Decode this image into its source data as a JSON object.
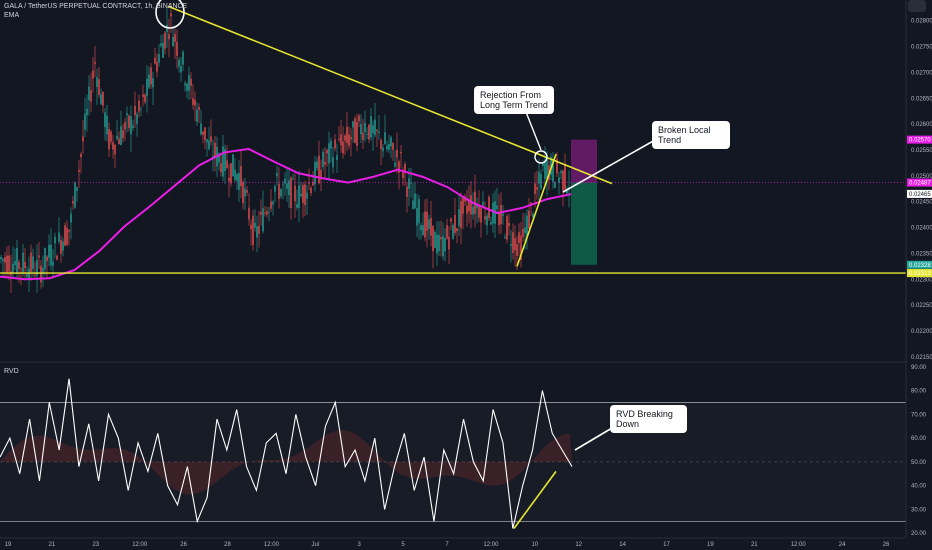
{
  "header": {
    "title": "GALA / TetherUS PERPETUAL CONTRACT, 1h, BINANCE",
    "indicator": "EMA",
    "sub_indicator": "RVD"
  },
  "colors": {
    "background": "#131722",
    "up": "#26a69a",
    "down": "#ef5350",
    "ema": "#e91ee6",
    "trendline": "#e6e62e",
    "annotation": "#ffffff",
    "rvd_line": "#ffffff",
    "stop_zone": "#6a1b6a",
    "target_zone": "#0e5e4a"
  },
  "annotations": [
    {
      "id": "rejection",
      "text": "Rejection From\nLong Term Trend"
    },
    {
      "id": "broken",
      "text": "Broken Local\nTrend"
    },
    {
      "id": "rvd",
      "text": "RVD Breaking\nDown"
    }
  ],
  "price_tags": [
    {
      "text": "0.02570",
      "color": "#e91ee6",
      "value": 0.0257
    },
    {
      "text": "0.02487",
      "color": "#e91ee6",
      "value": 0.02487
    },
    {
      "text": "0.02465",
      "color": "#ffffff",
      "value": 0.02465
    },
    {
      "text": "0.02328",
      "color": "#26a69a",
      "value": 0.02328
    },
    {
      "text": "0.02312",
      "color": "#e6e62e",
      "value": 0.02312
    }
  ],
  "chart_data": [
    {
      "type": "candlestick",
      "title": "GALA / TetherUS PERPETUAL CONTRACT, 1h, BINANCE",
      "x_ticks": [
        "19",
        "21",
        "23",
        "12:00",
        "26",
        "28",
        "12:00",
        "Jul",
        "3",
        "5",
        "7",
        "12:00",
        "10",
        "12",
        "14",
        "17",
        "19",
        "21",
        "12:00",
        "24",
        "26"
      ],
      "y_ticks": [
        0.028,
        0.0275,
        0.027,
        0.0265,
        0.026,
        0.0255,
        0.025,
        0.0245,
        0.024,
        0.0235,
        0.023,
        0.0225,
        0.022,
        0.0215
      ],
      "ylim": [
        0.0214,
        0.0284
      ],
      "series": [
        {
          "name": "EMA",
          "type": "line",
          "values": [
            0.02305,
            0.023,
            0.02302,
            0.02318,
            0.02355,
            0.02402,
            0.0244,
            0.0248,
            0.0252,
            0.02545,
            0.02552,
            0.02528,
            0.02505,
            0.02495,
            0.02487,
            0.02498,
            0.02512,
            0.02498,
            0.02478,
            0.02448,
            0.02428,
            0.02438,
            0.02455,
            0.02465
          ]
        }
      ],
      "levels": [
        {
          "name": "support",
          "value": 0.02312
        },
        {
          "name": "entry",
          "value": 0.02487
        },
        {
          "name": "stop",
          "value": 0.0257
        },
        {
          "name": "target",
          "value": 0.02328
        }
      ]
    },
    {
      "type": "line",
      "title": "RVD",
      "y_ticks": [
        90,
        80,
        70,
        60,
        50,
        40,
        30,
        20
      ],
      "ylim": [
        18,
        92
      ],
      "bands": [
        75,
        25
      ],
      "midline": 50,
      "series": [
        {
          "name": "RVD",
          "values": [
            52,
            60,
            45,
            68,
            42,
            75,
            55,
            85,
            48,
            66,
            42,
            70,
            60,
            38,
            58,
            46,
            62,
            40,
            32,
            48,
            25,
            35,
            68,
            55,
            72,
            48,
            38,
            58,
            62,
            45,
            70,
            52,
            40,
            65,
            75,
            48,
            55,
            42,
            60,
            30,
            48,
            62,
            38,
            52,
            25,
            55,
            45,
            68,
            50,
            42,
            72,
            58,
            22,
            40,
            55,
            80,
            62,
            55,
            48
          ]
        }
      ]
    }
  ]
}
